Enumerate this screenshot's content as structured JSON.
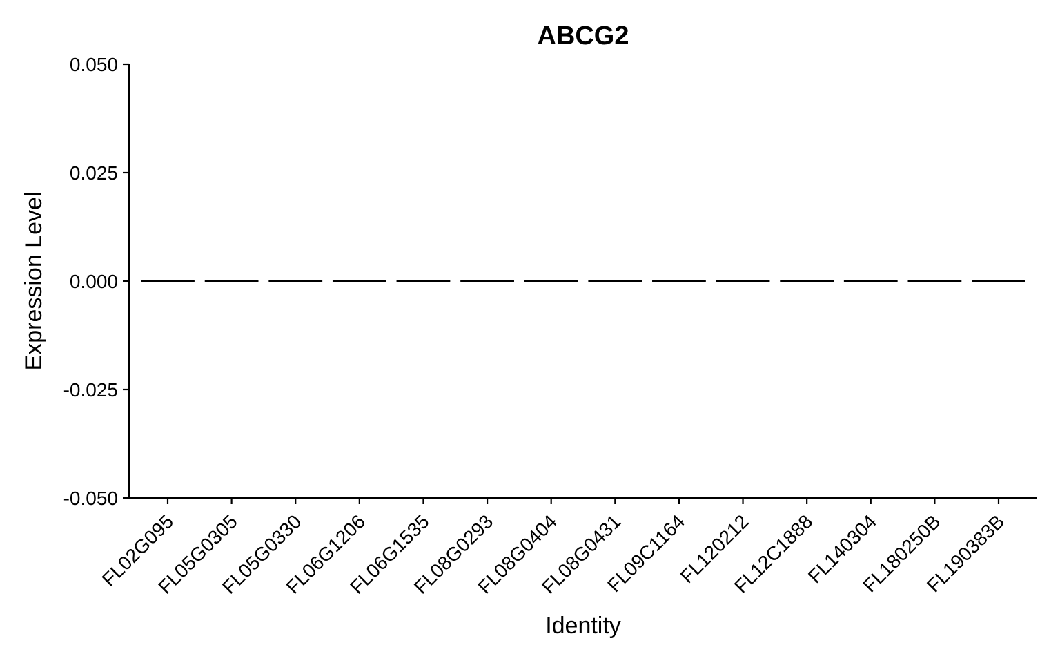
{
  "chart_data": {
    "type": "violin",
    "title": "ABCG2",
    "xlabel": "Identity",
    "ylabel": "Expression Level",
    "ylim": [
      -0.05,
      0.05
    ],
    "yticks": [
      -0.05,
      -0.025,
      0,
      0.025,
      0.05
    ],
    "ytick_labels": [
      "-0.050",
      "-0.025",
      "0.000",
      "0.025",
      "0.050"
    ],
    "categories": [
      "FL02G095",
      "FL05G0305",
      "FL05G0330",
      "FL06G1206",
      "FL06G1535",
      "FL08G0293",
      "FL08G0404",
      "FL08G0431",
      "FL09C1164",
      "FL120212",
      "FL12C1888",
      "FL140304",
      "FL180250B",
      "FL190383B"
    ],
    "values": [
      0,
      0,
      0,
      0,
      0,
      0,
      0,
      0,
      0,
      0,
      0,
      0,
      0,
      0
    ],
    "grid": false,
    "legend": "none"
  }
}
